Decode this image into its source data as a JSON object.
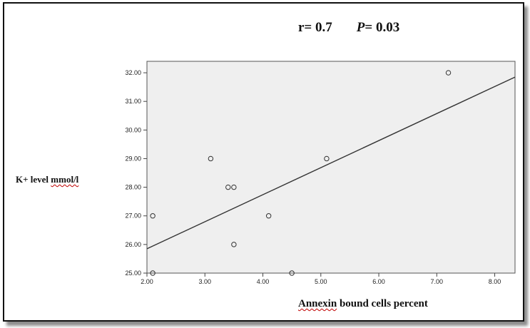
{
  "annotation": {
    "r_text": "r= 0.7",
    "p_label": "P",
    "p_text": "= 0.03"
  },
  "y_label": {
    "main": "K+ level ",
    "underlined": "mmol/l"
  },
  "x_label": {
    "underlined": "Annexin",
    "rest": " bound cells percent"
  },
  "chart_data": {
    "type": "scatter",
    "xlabel": "Annexin bound cells percent",
    "ylabel": "K+ level mmol/l",
    "xlim": [
      2.0,
      8.35
    ],
    "ylim": [
      25.0,
      32.4
    ],
    "x_ticks": [
      "2.00",
      "3.00",
      "4.00",
      "5.00",
      "6.00",
      "7.00",
      "8.00"
    ],
    "y_ticks": [
      "25.00",
      "26.00",
      "27.00",
      "28.00",
      "29.00",
      "30.00",
      "31.00",
      "32.00"
    ],
    "grid": false,
    "points": [
      {
        "x": 2.1,
        "y": 25.0
      },
      {
        "x": 2.1,
        "y": 27.0
      },
      {
        "x": 3.1,
        "y": 29.0
      },
      {
        "x": 3.4,
        "y": 28.0
      },
      {
        "x": 3.5,
        "y": 28.0
      },
      {
        "x": 3.5,
        "y": 26.0
      },
      {
        "x": 4.1,
        "y": 27.0
      },
      {
        "x": 4.5,
        "y": 25.0
      },
      {
        "x": 5.1,
        "y": 29.0
      },
      {
        "x": 7.2,
        "y": 32.0
      }
    ],
    "fit_line": {
      "x": [
        2.0,
        8.35
      ],
      "y": [
        25.85,
        31.85
      ]
    },
    "colors": {
      "plot_background": "#efefef",
      "marker": "#333333",
      "line": "#333333"
    }
  }
}
